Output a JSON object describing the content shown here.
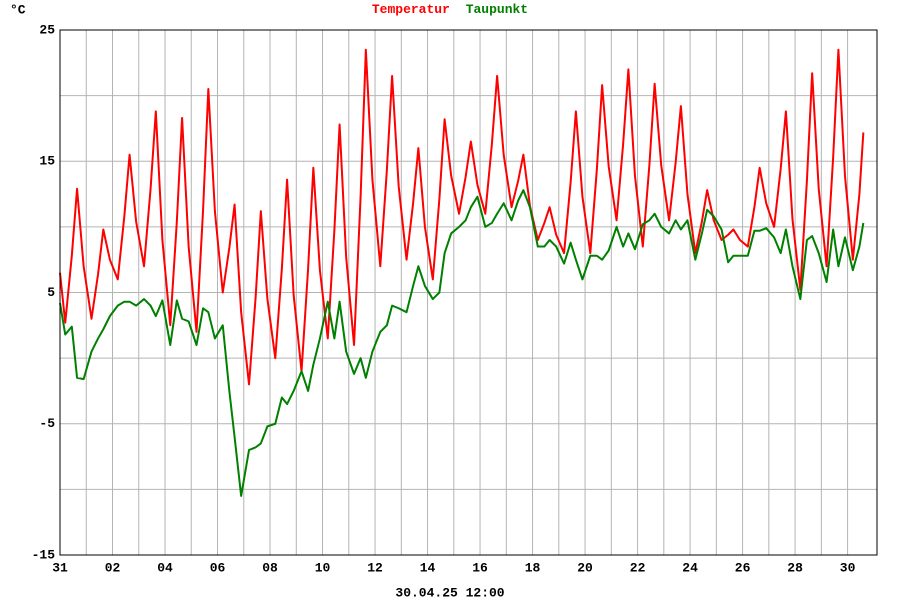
{
  "chart_data": {
    "type": "line",
    "ylabel": "°C",
    "xlabel": "30.04.25 12:00",
    "xlim": [
      0,
      31.12
    ],
    "ylim": [
      -15,
      25
    ],
    "yticks": [
      -15,
      -5,
      5,
      15,
      25
    ],
    "yminorticks": [
      -10,
      0,
      10,
      20
    ],
    "xticks": [
      {
        "value": 0,
        "label": "31"
      },
      {
        "value": 2,
        "label": "02"
      },
      {
        "value": 4,
        "label": "04"
      },
      {
        "value": 6,
        "label": "06"
      },
      {
        "value": 8,
        "label": "08"
      },
      {
        "value": 10,
        "label": "10"
      },
      {
        "value": 12,
        "label": "12"
      },
      {
        "value": 14,
        "label": "14"
      },
      {
        "value": 16,
        "label": "16"
      },
      {
        "value": 18,
        "label": "18"
      },
      {
        "value": 20,
        "label": "20"
      },
      {
        "value": 22,
        "label": "22"
      },
      {
        "value": 24,
        "label": "24"
      },
      {
        "value": 26,
        "label": "26"
      },
      {
        "value": 28,
        "label": "28"
      },
      {
        "value": 30,
        "label": "30"
      }
    ],
    "xminorticks": [
      1,
      3,
      5,
      7,
      9,
      11,
      13,
      15,
      17,
      19,
      21,
      23,
      25,
      27,
      29
    ],
    "grid": true,
    "x": [
      0,
      0.2,
      0.45,
      0.65,
      0.9,
      1.2,
      1.45,
      1.65,
      1.9,
      2.2,
      2.45,
      2.65,
      2.9,
      3.2,
      3.45,
      3.65,
      3.9,
      4.2,
      4.45,
      4.65,
      4.9,
      5.2,
      5.45,
      5.65,
      5.9,
      6.2,
      6.45,
      6.65,
      6.9,
      7.2,
      7.45,
      7.65,
      7.9,
      8.2,
      8.45,
      8.65,
      8.9,
      9.2,
      9.45,
      9.65,
      9.9,
      10.2,
      10.45,
      10.65,
      10.9,
      11.2,
      11.45,
      11.65,
      11.9,
      12.2,
      12.45,
      12.65,
      12.9,
      13.2,
      13.45,
      13.65,
      13.9,
      14.2,
      14.45,
      14.65,
      14.9,
      15.2,
      15.45,
      15.65,
      15.9,
      16.2,
      16.45,
      16.65,
      16.9,
      17.2,
      17.45,
      17.65,
      17.9,
      18.2,
      18.45,
      18.65,
      18.9,
      19.2,
      19.45,
      19.65,
      19.9,
      20.2,
      20.45,
      20.65,
      20.9,
      21.2,
      21.45,
      21.65,
      21.9,
      22.2,
      22.45,
      22.65,
      22.9,
      23.2,
      23.45,
      23.65,
      23.9,
      24.2,
      24.45,
      24.65,
      24.9,
      25.2,
      25.45,
      25.65,
      25.9,
      26.2,
      26.45,
      26.65,
      26.9,
      27.2,
      27.45,
      27.65,
      27.9,
      28.2,
      28.45,
      28.65,
      28.9,
      29.2,
      29.45,
      29.65,
      29.9,
      30.2,
      30.45,
      30.6
    ],
    "series": [
      {
        "name": "Temperatur",
        "color": "#ff0000",
        "values": [
          6.5,
          2.7,
          7.8,
          12.9,
          7.0,
          3,
          6.4,
          9.8,
          7.5,
          6,
          10.8,
          15.5,
          10.4,
          7,
          12.9,
          18.8,
          9.0,
          2.5,
          10.4,
          18.3,
          8.5,
          2,
          11.3,
          20.5,
          11.2,
          5,
          8.4,
          11.7,
          3.5,
          -2,
          4.6,
          11.2,
          4.5,
          0,
          6.8,
          13.6,
          4.8,
          -1,
          6.8,
          14.5,
          6.7,
          1.5,
          9.7,
          17.8,
          7.7,
          1,
          12.3,
          23.5,
          13.6,
          7,
          14.3,
          21.5,
          13.1,
          7.5,
          11.8,
          16,
          10,
          6,
          12.1,
          18.2,
          13.9,
          11,
          13.8,
          16.5,
          13.2,
          11,
          16.3,
          21.5,
          15.5,
          11.5,
          13.5,
          15.5,
          11.6,
          9,
          10.3,
          11.5,
          9.4,
          8,
          13.4,
          18.8,
          12.3,
          8,
          14.4,
          20.8,
          14.6,
          10.5,
          16.3,
          22,
          13.9,
          8.5,
          14.7,
          20.9,
          14.7,
          10.5,
          14.9,
          19.2,
          12.5,
          8,
          10.4,
          12.8,
          10.5,
          9,
          9.4,
          9.8,
          9.0,
          8.5,
          11.5,
          14.5,
          11.8,
          10,
          14.4,
          18.8,
          10.6,
          5.2,
          13.5,
          21.7,
          12.9,
          7,
          15.3,
          23.5,
          13.9,
          7.5,
          12.5,
          17.2
        ]
      },
      {
        "name": "Taupunkt",
        "color": "#008000",
        "values": [
          4.2,
          1.8,
          2.4,
          -1.5,
          -1.6,
          0.5,
          1.5,
          2.2,
          3.2,
          4.0,
          4.3,
          4.3,
          4.0,
          4.5,
          4.0,
          3.2,
          4.4,
          1.0,
          4.4,
          3.0,
          2.8,
          1.0,
          3.8,
          3.5,
          1.5,
          2.5,
          -2.5,
          -6,
          -10.5,
          -7,
          -6.8,
          -6.5,
          -5.2,
          -5,
          -3,
          -3.5,
          -2.5,
          -1,
          -2.5,
          -0.5,
          1.5,
          4.3,
          1.5,
          4.3,
          0.5,
          -1.2,
          0,
          -1.5,
          0.5,
          2.0,
          2.5,
          4,
          3.8,
          3.5,
          5.5,
          7,
          5.5,
          4.5,
          5,
          8,
          9.5,
          10,
          10.5,
          11.5,
          12.3,
          10,
          10.3,
          11,
          11.8,
          10.5,
          12,
          12.8,
          11.5,
          8.5,
          8.5,
          9,
          8.5,
          7.2,
          8.8,
          7.5,
          6,
          7.8,
          7.8,
          7.5,
          8.2,
          10,
          8.5,
          9.5,
          8.3,
          10.2,
          10.5,
          11,
          10,
          9.5,
          10.5,
          9.8,
          10.5,
          7.5,
          9.5,
          11.3,
          10.8,
          9.8,
          7.3,
          7.8,
          7.8,
          7.8,
          9.7,
          9.7,
          9.9,
          9.2,
          8,
          9.8,
          7,
          4.5,
          9,
          9.3,
          8,
          5.8,
          9.8,
          7,
          9.2,
          6.7,
          8.5,
          10.3
        ]
      }
    ]
  }
}
